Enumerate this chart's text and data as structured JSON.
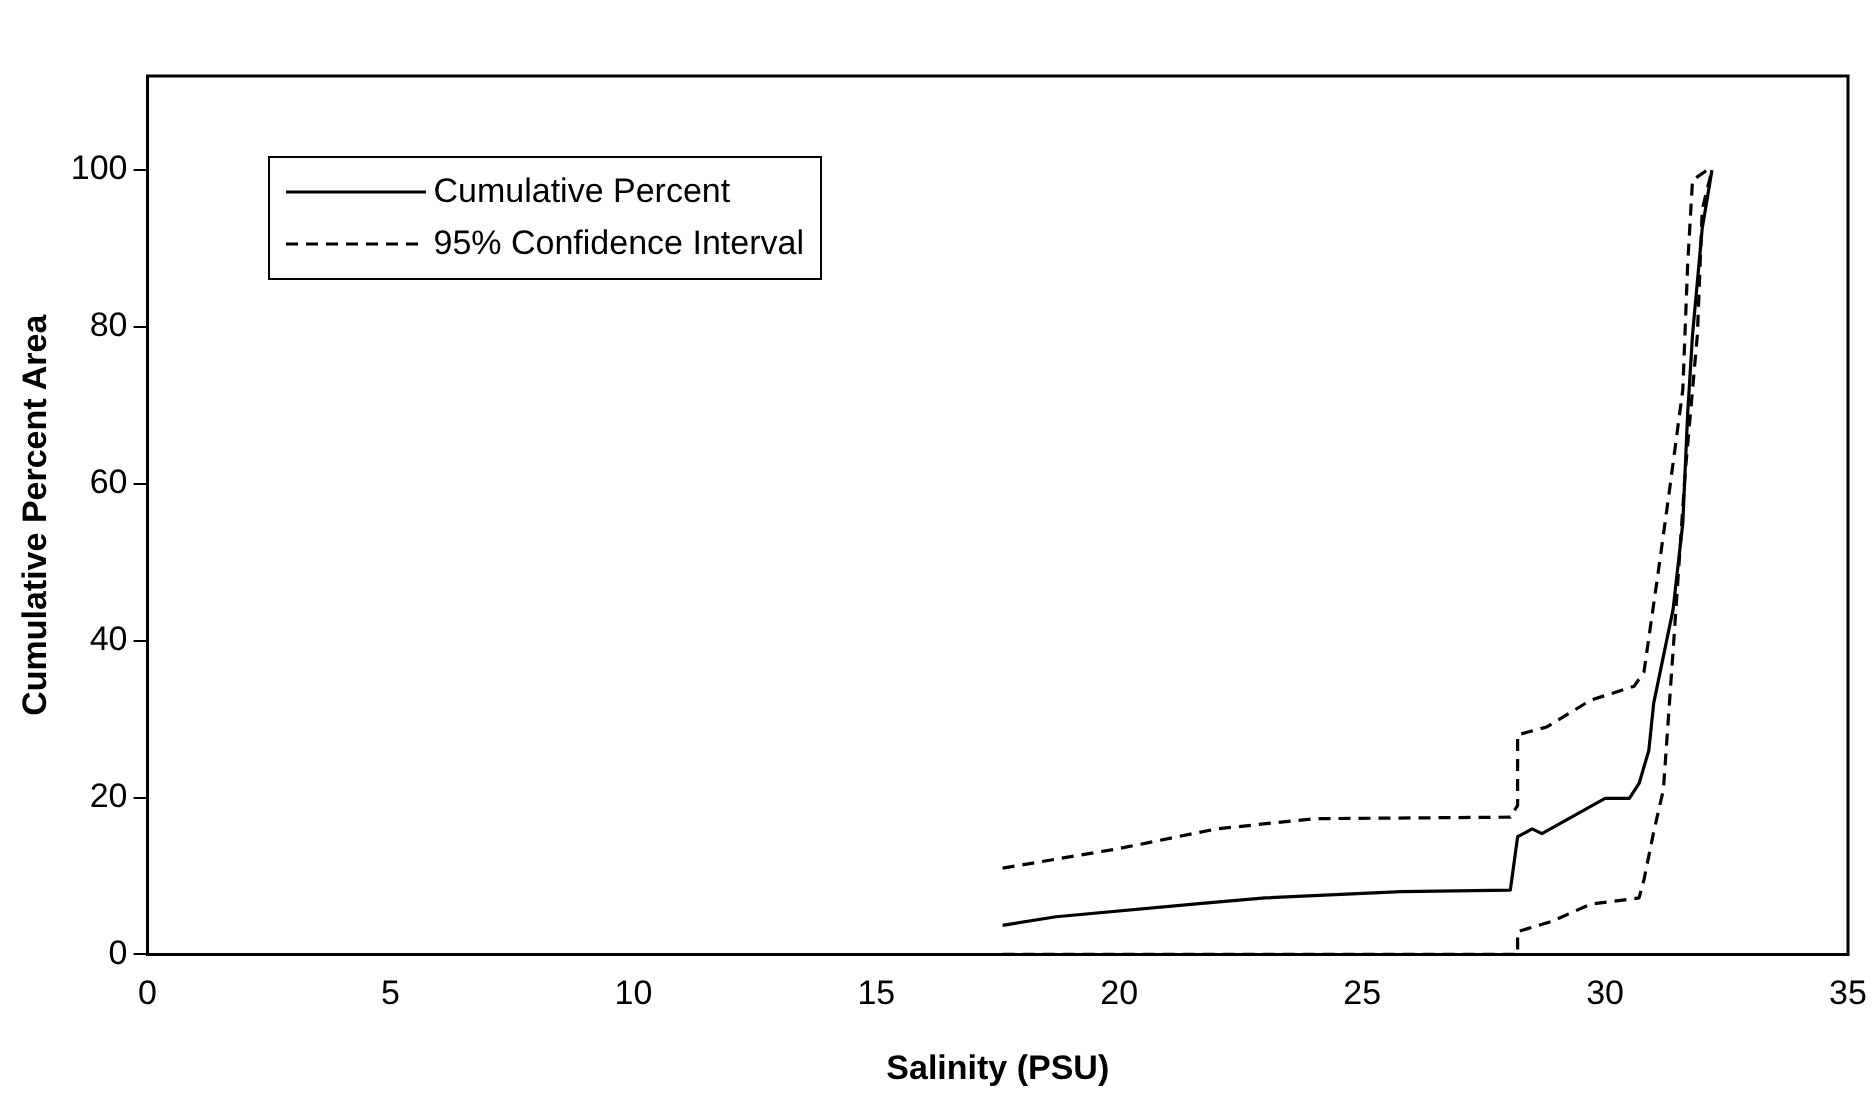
{
  "chart_data": {
    "type": "line",
    "xlabel": "Salinity (PSU)",
    "ylabel": "Cumulative Percent Area",
    "xlim": [
      0,
      35
    ],
    "xticks": [
      0,
      5,
      10,
      15,
      20,
      25,
      30,
      35
    ],
    "ylim": [
      0,
      112
    ],
    "yticks": [
      0,
      20,
      40,
      60,
      80,
      100
    ],
    "grid": false,
    "legend": "top left",
    "marker": "none",
    "series": [
      {
        "name": "Cumulative Percent",
        "color": "#000000",
        "line_style": "solid",
        "x": [
          17.6,
          18.7,
          21.7,
          23,
          25.8,
          28.05,
          28.2,
          28.5,
          28.7,
          30.0,
          30.5,
          30.7,
          30.9,
          31.0,
          31.4,
          31.6,
          31.7,
          31.8,
          32.0,
          32.2
        ],
        "values": [
          3.7,
          4.8,
          6.5,
          7.2,
          8.0,
          8.2,
          15,
          16,
          15.4,
          19.9,
          19.9,
          21.8,
          26,
          32,
          44,
          55,
          69,
          79,
          92.6,
          100
        ]
      },
      {
        "name": "95% Confidence Interval",
        "color": "#000000",
        "line_style": "dashed",
        "x": [
          17.6,
          20,
          22,
          24,
          28.05,
          28.2,
          28.2,
          28.8,
          29.7,
          30.6,
          30.8,
          31.1,
          31.3,
          31.6,
          31.7,
          31.8,
          32.1
        ],
        "values": [
          11,
          13.5,
          16,
          17.3,
          17.5,
          19,
          28,
          29,
          32.4,
          34.2,
          36,
          49,
          58,
          72,
          88,
          98.7,
          100
        ]
      },
      {
        "color": "#000000",
        "line_style": "dashed",
        "x": [
          17.6,
          28.2,
          28.2,
          28.9,
          29.7,
          30.7,
          30.8,
          31.0,
          31.2,
          31.4,
          31.65,
          31.9,
          32.0,
          32.2
        ],
        "values": [
          0,
          0,
          2.9,
          4.2,
          6.4,
          7.2,
          9.5,
          15.6,
          21,
          38.7,
          61.5,
          79,
          95,
          100
        ]
      }
    ]
  }
}
